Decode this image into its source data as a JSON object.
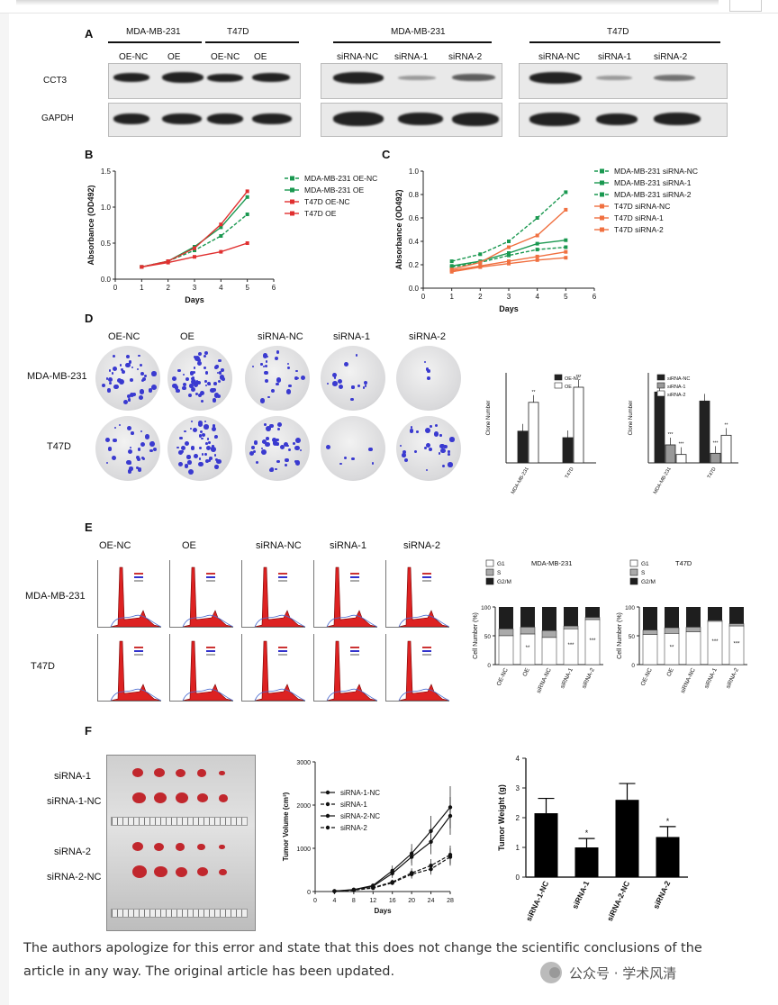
{
  "panelA": {
    "letter": "A",
    "group1": {
      "cells": [
        "MDA-MB-231",
        "T47D"
      ],
      "lanes": [
        "OE-NC",
        "OE",
        "OE-NC",
        "OE"
      ]
    },
    "group2": {
      "cell": "MDA-MB-231",
      "lanes": [
        "siRNA-NC",
        "siRNA-1",
        "siRNA-2"
      ]
    },
    "group3": {
      "cell": "T47D",
      "lanes": [
        "siRNA-NC",
        "siRNA-1",
        "siRNA-2"
      ]
    },
    "rows": [
      "CCT3",
      "GAPDH"
    ]
  },
  "panelB": {
    "letter": "B",
    "chart_data": {
      "type": "line",
      "x": [
        1,
        2,
        3,
        4,
        5
      ],
      "xlabel": "Days",
      "ylabel": "Absorbance (OD492)",
      "xlim": [
        0,
        6
      ],
      "ylim": [
        0,
        1.5
      ],
      "yticks": [
        "0.0",
        "0.5",
        "1.0",
        "1.5"
      ],
      "xticks": [
        "0",
        "1",
        "2",
        "3",
        "4",
        "5",
        "6"
      ],
      "series": [
        {
          "name": "MDA-MB-231 OE-NC",
          "values": [
            0.17,
            0.25,
            0.4,
            0.6,
            0.9
          ],
          "color": "#1a9850",
          "dash": true
        },
        {
          "name": "MDA-MB-231 OE",
          "values": [
            0.17,
            0.25,
            0.45,
            0.72,
            1.14
          ],
          "color": "#1a9850",
          "dash": false
        },
        {
          "name": "T47D OE-NC",
          "values": [
            0.17,
            0.23,
            0.31,
            0.38,
            0.5
          ],
          "color": "#e03030",
          "dash": false
        },
        {
          "name": "T47D OE",
          "values": [
            0.17,
            0.25,
            0.43,
            0.76,
            1.22
          ],
          "color": "#e03030",
          "dash": false
        }
      ]
    }
  },
  "panelC": {
    "letter": "C",
    "chart_data": {
      "type": "line",
      "x": [
        1,
        2,
        3,
        4,
        5
      ],
      "xlabel": "Days",
      "ylabel": "Absorbance (OD492)",
      "xlim": [
        0,
        6
      ],
      "ylim": [
        0,
        1.0
      ],
      "yticks": [
        "0.0",
        "0.2",
        "0.4",
        "0.6",
        "0.8",
        "1.0"
      ],
      "xticks": [
        "0",
        "1",
        "2",
        "3",
        "4",
        "5",
        "6"
      ],
      "series": [
        {
          "name": "MDA-MB-231 siRNA-NC",
          "values": [
            0.23,
            0.29,
            0.4,
            0.6,
            0.82
          ],
          "color": "#1a9850",
          "dash": true
        },
        {
          "name": "MDA-MB-231 siRNA-1",
          "values": [
            0.19,
            0.23,
            0.3,
            0.38,
            0.41
          ],
          "color": "#1a9850",
          "dash": false
        },
        {
          "name": "MDA-MB-231 siRNA-2",
          "values": [
            0.18,
            0.22,
            0.28,
            0.33,
            0.35
          ],
          "color": "#1a9850",
          "dash": true
        },
        {
          "name": "T47D siRNA-NC",
          "values": [
            0.16,
            0.22,
            0.35,
            0.45,
            0.67
          ],
          "color": "#f07040",
          "dash": false
        },
        {
          "name": "T47D siRNA-1",
          "values": [
            0.14,
            0.18,
            0.21,
            0.24,
            0.26
          ],
          "color": "#f07040",
          "dash": false
        },
        {
          "name": "T47D siRNA-2",
          "values": [
            0.15,
            0.19,
            0.23,
            0.27,
            0.31
          ],
          "color": "#f07040",
          "dash": false
        }
      ]
    }
  },
  "panelD": {
    "letter": "D",
    "cols": [
      "OE-NC",
      "OE",
      "siRNA-NC",
      "siRNA-1",
      "siRNA-2"
    ],
    "rows": [
      "MDA-MB-231",
      "T47D"
    ],
    "chart1": {
      "type": "bar",
      "ylabel": "Clone Number",
      "categories": [
        "MDA-MB-231",
        "T47D"
      ],
      "ylim": [
        0,
        250
      ],
      "series": [
        {
          "name": "OE-NC",
          "values": [
            88,
            70
          ],
          "fill": "#222"
        },
        {
          "name": "OE",
          "values": [
            168,
            210
          ],
          "fill": "#fff"
        }
      ],
      "stars": [
        "**",
        "***"
      ]
    },
    "chart2": {
      "type": "bar",
      "ylabel": "Clone Number",
      "categories": [
        "MDA-MB-231",
        "T47D"
      ],
      "ylim": [
        0,
        150
      ],
      "series": [
        {
          "name": "siRNA-NC",
          "values": [
            118,
            103
          ],
          "fill": "#222"
        },
        {
          "name": "siRNA-1",
          "values": [
            30,
            16
          ],
          "fill": "#999"
        },
        {
          "name": "siRNA-2",
          "values": [
            14,
            46
          ],
          "fill": "#fff"
        }
      ],
      "stars": [
        "***",
        "***",
        "***",
        "**"
      ]
    }
  },
  "panelE": {
    "letter": "E",
    "cols": [
      "OE-NC",
      "OE",
      "siRNA-NC",
      "siRNA-1",
      "siRNA-2"
    ],
    "rows": [
      "MDA-MB-231",
      "T47D"
    ],
    "chart1": {
      "type": "bar",
      "title": "MDA-MB-231",
      "ylabel": "Cell Number (%)",
      "categories": [
        "OE-NC",
        "OE",
        "siRNA-NC",
        "siRNA-1",
        "siRNA-2"
      ],
      "legend": [
        "G1",
        "S",
        "G2/M"
      ],
      "yticks": [
        "0",
        "50",
        "100"
      ],
      "g1": [
        50,
        53,
        47,
        62,
        78
      ],
      "s": [
        12,
        12,
        12,
        5,
        4
      ],
      "stars": [
        "",
        "**",
        "",
        "***",
        "***"
      ]
    },
    "chart2": {
      "type": "bar",
      "title": "T47D",
      "ylabel": "Cell Number (%)",
      "categories": [
        "OE-NC",
        "OE",
        "siRNA-NC",
        "siRNA-1",
        "siRNA-2"
      ],
      "legend": [
        "G1",
        "S",
        "G2/M"
      ],
      "yticks": [
        "0",
        "50",
        "100"
      ],
      "g1": [
        52,
        54,
        57,
        75,
        67
      ],
      "s": [
        8,
        10,
        8,
        2,
        4
      ],
      "stars": [
        "",
        "**",
        "",
        "***",
        "***"
      ]
    }
  },
  "panelF": {
    "letter": "F",
    "photo_labels": [
      "siRNA-1",
      "siRNA-1-NC",
      "siRNA-2",
      "siRNA-2-NC"
    ],
    "chart1": {
      "type": "line",
      "xlabel": "Days",
      "ylabel": "Tumor Volume (cm³)",
      "x": [
        0,
        4,
        8,
        12,
        16,
        20,
        24,
        28
      ],
      "xticks": [
        "0",
        "4",
        "8",
        "12",
        "16",
        "20",
        "24",
        "28"
      ],
      "yticks": [
        "0",
        "1000",
        "2000",
        "3000"
      ],
      "ylim": [
        0,
        3000
      ],
      "series": [
        {
          "name": "siRNA-1-NC",
          "values": [
            null,
            10,
            40,
            120,
            420,
            800,
            1150,
            1750
          ],
          "dash": false,
          "marker": "circle"
        },
        {
          "name": "siRNA-1",
          "values": [
            null,
            8,
            30,
            80,
            200,
            400,
            520,
            800
          ],
          "dash": true,
          "marker": "square"
        },
        {
          "name": "siRNA-2-NC",
          "values": [
            null,
            10,
            45,
            140,
            480,
            880,
            1400,
            1950
          ],
          "dash": false,
          "marker": "triangle"
        },
        {
          "name": "siRNA-2",
          "values": [
            null,
            8,
            32,
            90,
            220,
            430,
            600,
            850
          ],
          "dash": true,
          "marker": "triangle-down"
        }
      ]
    },
    "chart2": {
      "type": "bar",
      "ylabel": "Tumor Weight (g)",
      "categories": [
        "siRNA-1-NC",
        "siRNA-1",
        "siRNA-2-NC",
        "siRNA-2"
      ],
      "values": [
        2.15,
        1.0,
        2.6,
        1.35
      ],
      "errors": [
        0.5,
        0.3,
        0.55,
        0.35
      ],
      "ylim": [
        0,
        4
      ],
      "yticks": [
        "0",
        "1",
        "2",
        "3",
        "4"
      ],
      "stars": [
        "",
        "*",
        "",
        "*"
      ]
    }
  },
  "footer": {
    "text": "The authors apologize for this error and state that this does not change the scientific conclusions of the article in any way. The original article has been updated."
  },
  "watermark": {
    "text": "公众号 · 学术风清",
    "icon": "wechat-icon"
  }
}
